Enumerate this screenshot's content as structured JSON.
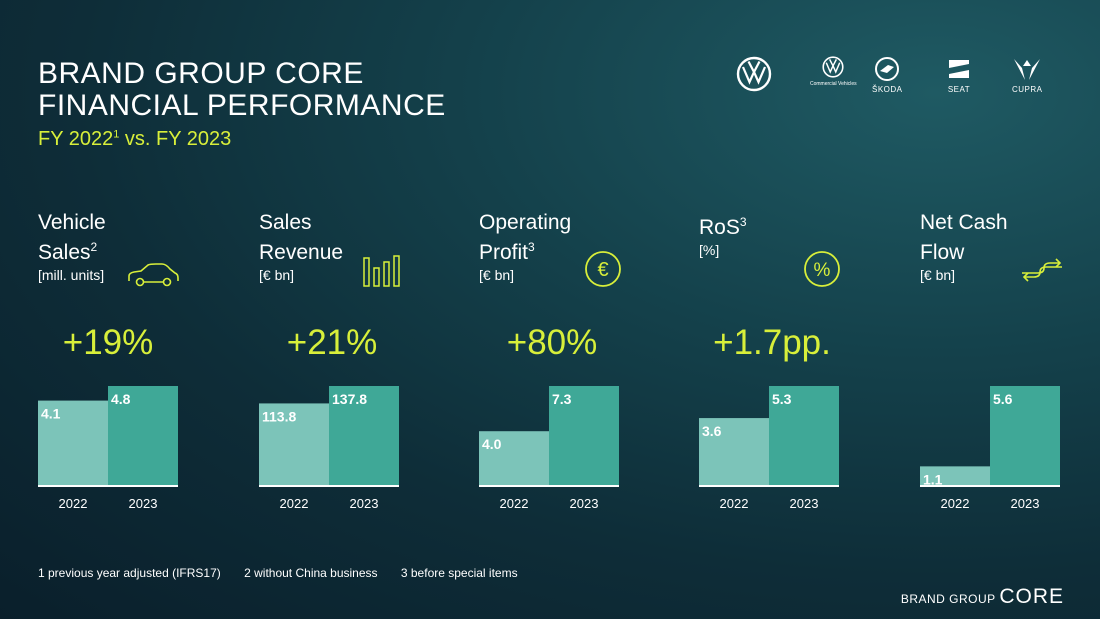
{
  "title_line1": "BRAND GROUP CORE",
  "title_line2": "FINANCIAL PERFORMANCE",
  "subtitle": {
    "pre": "FY 2022",
    "sup": "1",
    "post": " vs. FY 2023"
  },
  "logos": {
    "commercial_caption": "Commercial Vehicles",
    "skoda": "ŠKODA",
    "seat": "SEAT",
    "cupra": "CUPRA"
  },
  "kpis": [
    {
      "line1": "Vehicle",
      "line2": "Sales",
      "sup": "2",
      "unit": "[mill. units]",
      "delta": "+19%",
      "icon": "car-icon"
    },
    {
      "line1": "Sales",
      "line2": "Revenue",
      "sup": "",
      "unit": "[€ bn]",
      "delta": "+21%",
      "icon": "bar-chart-icon"
    },
    {
      "line1": "Operating",
      "line2": "Profit",
      "sup": "3",
      "unit": "[€ bn]",
      "delta": "+80%",
      "icon": "euro-icon"
    },
    {
      "line1": "RoS",
      "line2": "",
      "sup": "3",
      "unit": "[%]",
      "delta": "+1.7pp.",
      "icon": "percent-icon"
    },
    {
      "line1": "Net Cash",
      "line2": "Flow",
      "sup": "",
      "unit": "[€ bn]",
      "delta": "",
      "icon": "exchange-icon"
    }
  ],
  "chart_data": [
    {
      "type": "bar",
      "categories": [
        "2022",
        "2023"
      ],
      "values": [
        4.1,
        4.8
      ],
      "labels": [
        "4.1",
        "4.8"
      ]
    },
    {
      "type": "bar",
      "categories": [
        "2022",
        "2023"
      ],
      "values": [
        113.8,
        137.8
      ],
      "labels": [
        "113.8",
        "137.8"
      ]
    },
    {
      "type": "bar",
      "categories": [
        "2022",
        "2023"
      ],
      "values": [
        4.0,
        7.3
      ],
      "labels": [
        "4.0",
        "7.3"
      ]
    },
    {
      "type": "bar",
      "categories": [
        "2022",
        "2023"
      ],
      "values": [
        3.6,
        5.3
      ],
      "labels": [
        "3.6",
        "5.3"
      ]
    },
    {
      "type": "bar",
      "categories": [
        "2022",
        "2023"
      ],
      "values": [
        1.1,
        5.6
      ],
      "labels": [
        "1.1",
        "5.6"
      ]
    }
  ],
  "colors": {
    "accent": "#d8ef3a",
    "bar_2022": "#7cc4b9",
    "bar_2023": "#3fa897",
    "axis": "#ffffff"
  },
  "footnotes": [
    "1 previous year adjusted (IFRS17)",
    "2 without China business",
    "3 before special items"
  ],
  "brand": {
    "small": "BRAND GROUP ",
    "big": "CORE"
  }
}
